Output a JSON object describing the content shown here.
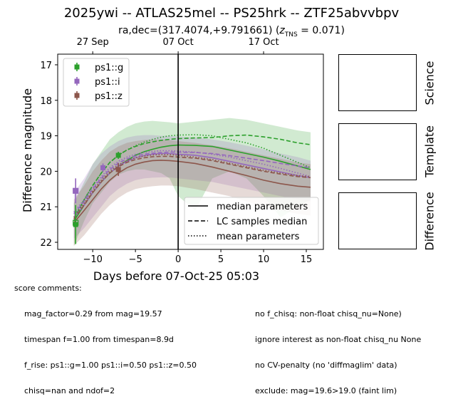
{
  "header": {
    "title": "2025ywi -- ATLAS25mel -- PS25hrk -- ZTF25abvvbpv",
    "subtitle_prefix": "ra,dec=(317.4074,+9.791661) (",
    "subtitle_z_symbol": "z",
    "subtitle_z_sub": "TNS",
    "subtitle_suffix": " = 0.071)"
  },
  "panels": {
    "science": "Science",
    "template": "Template",
    "difference": "Difference"
  },
  "comments": {
    "heading": "score comments:",
    "left": [
      "mag_factor=0.29 from mag=19.57",
      "timespan f=1.00 from timespan=8.9d",
      "f_rise: ps1::g=1.00 ps1::i=0.50 ps1::z=0.50",
      "chisq=nan and ndof=2"
    ],
    "right": [
      "no f_chisq: non-float chisq_nu=None)",
      "ignore interest as non-float chisq_nu None",
      "no CV-penalty (no 'diffmaglim' data)",
      "exclude: mag=19.6>19.0 (faint lim)"
    ]
  },
  "chart_data": {
    "type": "line",
    "xlabel": "Days before 07-Oct-25 05:03",
    "ylabel": "Difference magnitude",
    "xlim": [
      -14.1,
      17.0
    ],
    "ylim": [
      22.2,
      16.7
    ],
    "y_inverted": true,
    "xticks": [
      -10,
      -5,
      0,
      5,
      10,
      15
    ],
    "xtick_labels": [
      "−10",
      "−5",
      "0",
      "5",
      "10",
      "15"
    ],
    "yticks": [
      17,
      18,
      19,
      20,
      21,
      22
    ],
    "top_ticks": [
      {
        "x": -10,
        "label": "27 Sep"
      },
      {
        "x": 0,
        "label": "07 Oct"
      },
      {
        "x": 10,
        "label": "17 Oct"
      }
    ],
    "vline_x": 0,
    "grid": false,
    "legend_points": [
      "ps1::g",
      "ps1::i",
      "ps1::z"
    ],
    "legend_lines": [
      {
        "label": "median parameters",
        "style": "solid"
      },
      {
        "label": "LC samples median",
        "style": "dashed"
      },
      {
        "label": "mean parameters",
        "style": "dotted"
      }
    ],
    "series": [
      {
        "name": "ps1::g",
        "color": "#2ca02c",
        "points": [
          {
            "x": -12.0,
            "y": 21.5,
            "err": 0.55
          },
          {
            "x": -7.0,
            "y": 19.55,
            "err": 0.1
          }
        ],
        "open_points": [
          {
            "x": -12.0,
            "y": 21.45
          }
        ],
        "median_x": [
          -12.2,
          -11,
          -10,
          -9,
          -8,
          -7,
          -6,
          -5,
          -4,
          -3,
          -2,
          -1,
          0,
          2,
          4,
          6,
          8,
          10,
          12,
          14,
          15.5
        ],
        "median_y": [
          21.4,
          20.95,
          20.6,
          20.3,
          20.05,
          19.85,
          19.7,
          19.55,
          19.45,
          19.38,
          19.32,
          19.28,
          19.26,
          19.27,
          19.3,
          19.4,
          19.5,
          19.6,
          19.72,
          19.85,
          19.95
        ],
        "samples_x": [
          -12.2,
          -11,
          -10,
          -9,
          -8,
          -7,
          -6,
          -5,
          -4,
          -3,
          -2,
          -1,
          0,
          2,
          4,
          6,
          8,
          10,
          12,
          14,
          15.5
        ],
        "samples_y": [
          21.35,
          20.8,
          20.4,
          20.05,
          19.75,
          19.55,
          19.4,
          19.3,
          19.22,
          19.17,
          19.13,
          19.1,
          19.08,
          19.06,
          19.05,
          19.0,
          18.98,
          19.03,
          19.1,
          19.2,
          19.25
        ],
        "mean_x": [
          -12.2,
          -11,
          -10,
          -9,
          -8,
          -7,
          -6,
          -5,
          -4,
          -3,
          -2,
          -1,
          0,
          2,
          4,
          6,
          8,
          10,
          12,
          14,
          15.5
        ],
        "mean_y": [
          21.3,
          20.8,
          20.4,
          20.05,
          19.75,
          19.55,
          19.4,
          19.28,
          19.18,
          19.1,
          19.04,
          19.0,
          18.98,
          18.97,
          19.0,
          19.1,
          19.2,
          19.35,
          19.55,
          19.75,
          19.9
        ],
        "band_x": [
          -12.2,
          -11,
          -10,
          -9,
          -8,
          -7,
          -6,
          -5,
          -4,
          -3,
          -2,
          -1,
          0,
          2,
          4,
          6,
          8,
          10,
          12,
          14,
          15.5
        ],
        "band_lo": [
          20.9,
          20.3,
          19.8,
          19.45,
          19.1,
          18.9,
          18.75,
          18.65,
          18.6,
          18.58,
          18.6,
          18.62,
          18.65,
          18.6,
          18.55,
          18.5,
          18.55,
          18.65,
          18.75,
          18.85,
          18.9
        ],
        "band_hi": [
          22.1,
          21.4,
          20.9,
          20.6,
          20.3,
          20.1,
          20.0,
          19.95,
          19.95,
          20.0,
          20.05,
          20.2,
          20.7,
          21.1,
          20.2,
          20.0,
          20.2,
          20.7,
          21.3,
          21.0,
          20.8
        ]
      },
      {
        "name": "ps1::i",
        "color": "#9467bd",
        "points": [
          {
            "x": -12.0,
            "y": 20.55,
            "err": 0.35
          },
          {
            "x": -8.8,
            "y": 19.9,
            "err": 0.12
          }
        ],
        "open_points": [
          {
            "x": -12.0,
            "y": 20.55
          }
        ],
        "median_x": [
          -12.2,
          -11,
          -10,
          -9,
          -8,
          -7,
          -6,
          -5,
          -4,
          -3,
          -2,
          -1,
          0,
          2,
          4,
          6,
          8,
          10,
          12,
          14,
          15.5
        ],
        "median_y": [
          21.3,
          20.95,
          20.6,
          20.3,
          20.05,
          19.85,
          19.72,
          19.62,
          19.56,
          19.52,
          19.5,
          19.5,
          19.52,
          19.55,
          19.62,
          19.72,
          19.82,
          19.92,
          20.02,
          20.12,
          20.18
        ],
        "samples_x": [
          -12.2,
          -11,
          -10,
          -9,
          -8,
          -7,
          -6,
          -5,
          -4,
          -3,
          -2,
          -1,
          0,
          2,
          4,
          6,
          8,
          10,
          12,
          14,
          15.5
        ],
        "samples_y": [
          21.2,
          20.85,
          20.5,
          20.2,
          19.95,
          19.77,
          19.65,
          19.57,
          19.52,
          19.49,
          19.47,
          19.46,
          19.46,
          19.47,
          19.5,
          19.56,
          19.63,
          19.7,
          19.78,
          19.85,
          19.9
        ],
        "mean_x": [
          -12.2,
          -11,
          -10,
          -9,
          -8,
          -7,
          -6,
          -5,
          -4,
          -3,
          -2,
          -1,
          0,
          2,
          4,
          6,
          8,
          10,
          12,
          14,
          15.5
        ],
        "mean_y": [
          21.15,
          20.8,
          20.45,
          20.15,
          19.9,
          19.72,
          19.6,
          19.52,
          19.47,
          19.44,
          19.42,
          19.42,
          19.43,
          19.46,
          19.52,
          19.6,
          19.7,
          19.8,
          19.92,
          20.05,
          20.15
        ],
        "band_x": [
          -12.2,
          -11,
          -10,
          -9,
          -8,
          -7,
          -6,
          -5,
          -4,
          -3,
          -2,
          -1,
          0,
          2,
          4,
          6,
          8,
          10,
          12,
          14,
          15.5
        ],
        "band_lo": [
          20.6,
          20.2,
          19.8,
          19.5,
          19.3,
          19.15,
          19.05,
          19.0,
          18.98,
          18.98,
          19.0,
          19.0,
          19.02,
          19.05,
          19.1,
          19.18,
          19.28,
          19.38,
          19.5,
          19.6,
          19.7
        ],
        "band_hi": [
          21.9,
          21.6,
          21.3,
          21.0,
          20.7,
          20.5,
          20.35,
          20.25,
          20.2,
          20.18,
          20.17,
          20.17,
          20.2,
          20.25,
          20.3,
          20.4,
          20.5,
          20.6,
          20.7,
          20.8,
          20.85
        ]
      },
      {
        "name": "ps1::z",
        "color": "#8c564b",
        "points": [
          {
            "x": -7.0,
            "y": 19.95,
            "err": 0.18
          }
        ],
        "open_points": [],
        "median_x": [
          -12.2,
          -11,
          -10,
          -9,
          -8,
          -7,
          -6,
          -5,
          -4,
          -3,
          -2,
          -1,
          0,
          2,
          4,
          6,
          8,
          10,
          12,
          14,
          15.5
        ],
        "median_y": [
          21.45,
          21.1,
          20.8,
          20.5,
          20.25,
          20.05,
          19.9,
          19.8,
          19.74,
          19.7,
          19.69,
          19.7,
          19.72,
          19.78,
          19.88,
          20.0,
          20.12,
          20.25,
          20.35,
          20.42,
          20.45
        ],
        "samples_x": [
          -12.2,
          -11,
          -10,
          -9,
          -8,
          -7,
          -6,
          -5,
          -4,
          -3,
          -2,
          -1,
          0,
          2,
          4,
          6,
          8,
          10,
          12,
          14,
          15.5
        ],
        "samples_y": [
          21.35,
          20.95,
          20.6,
          20.3,
          20.05,
          19.87,
          19.75,
          19.67,
          19.62,
          19.59,
          19.58,
          19.58,
          19.6,
          19.63,
          19.7,
          19.8,
          19.9,
          20.0,
          20.08,
          20.15,
          20.18
        ],
        "mean_x": [
          -12.2,
          -11,
          -10,
          -9,
          -8,
          -7,
          -6,
          -5,
          -4,
          -3,
          -2,
          -1,
          0,
          2,
          4,
          6,
          8,
          10,
          12,
          14,
          15.5
        ],
        "mean_y": [
          21.3,
          20.9,
          20.55,
          20.25,
          20.0,
          19.82,
          19.7,
          19.62,
          19.57,
          19.54,
          19.53,
          19.53,
          19.55,
          19.6,
          19.67,
          19.77,
          19.87,
          19.97,
          20.05,
          20.12,
          20.15
        ],
        "band_x": [
          -12.2,
          -11,
          -10,
          -9,
          -8,
          -7,
          -6,
          -5,
          -4,
          -3,
          -2,
          -1,
          0,
          2,
          4,
          6,
          8,
          10,
          12,
          14,
          15.5
        ],
        "band_lo": [
          20.8,
          20.4,
          20.0,
          19.7,
          19.45,
          19.3,
          19.2,
          19.15,
          19.12,
          19.1,
          19.1,
          19.12,
          19.15,
          19.2,
          19.27,
          19.35,
          19.45,
          19.55,
          19.65,
          19.75,
          19.8
        ],
        "band_hi": [
          22.1,
          21.8,
          21.5,
          21.2,
          20.95,
          20.75,
          20.6,
          20.5,
          20.45,
          20.42,
          20.4,
          20.4,
          20.42,
          20.5,
          20.6,
          20.7,
          20.85,
          21.0,
          21.1,
          21.2,
          21.25
        ]
      }
    ]
  }
}
